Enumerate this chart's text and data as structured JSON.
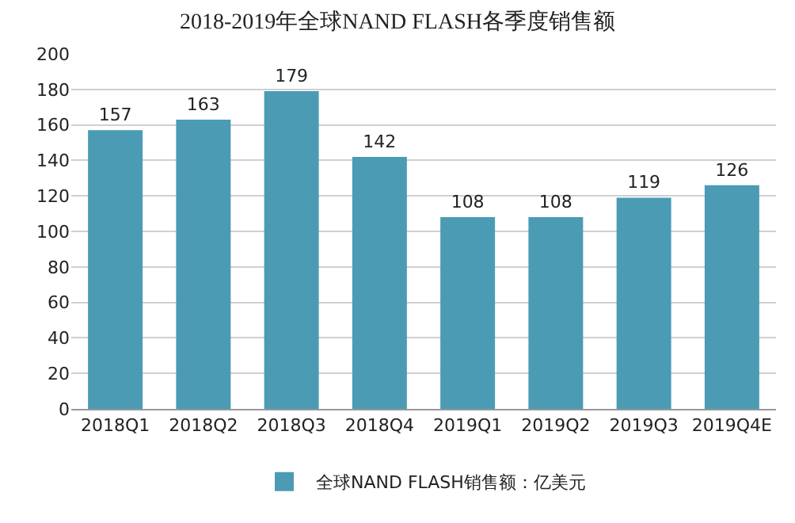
{
  "chart_data": {
    "type": "bar",
    "title": "2018-2019年全球NAND FLASH各季度销售额",
    "categories": [
      "2018Q1",
      "2018Q2",
      "2018Q3",
      "2018Q4",
      "2019Q1",
      "2019Q2",
      "2019Q3",
      "2019Q4E"
    ],
    "series": [
      {
        "name": "全球NAND FLASH销售额：亿美元",
        "color": "#4b9bb5",
        "values": [
          157,
          163,
          179,
          142,
          108,
          108,
          119,
          126
        ]
      }
    ],
    "ylim": [
      0,
      200
    ],
    "yticks": [
      0,
      20,
      40,
      60,
      80,
      100,
      120,
      140,
      160,
      180,
      200
    ],
    "grid": "y",
    "legend": "bottom",
    "data_labels": true
  }
}
